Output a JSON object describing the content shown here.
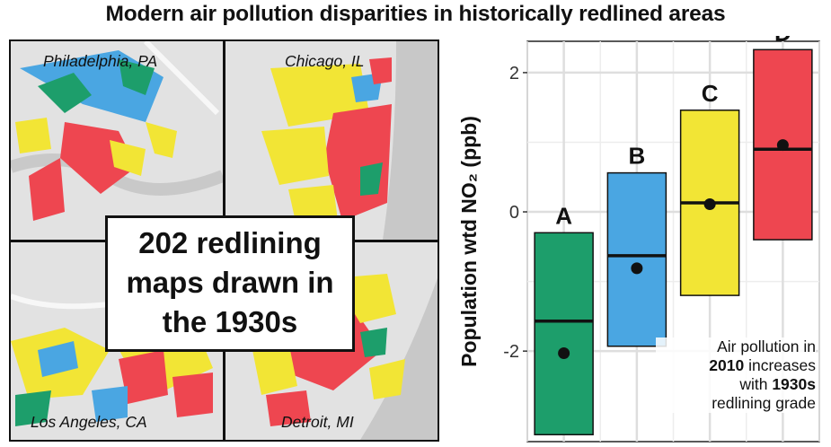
{
  "title": "Modern air pollution disparities in historically redlined areas",
  "maps": {
    "cities": [
      "Philadelphia, PA",
      "Chicago, IL",
      "Los Angeles, CA",
      "Detroit, MI"
    ],
    "callout_lines": [
      "202 redlining",
      "maps drawn in",
      "the 1930s"
    ]
  },
  "colors": {
    "A": "#1d9e6b",
    "B": "#4aa6e2",
    "C": "#f2e535",
    "D": "#ee4650",
    "background": "#ebebeb",
    "road": "#f7f7f7",
    "water": "#c8c8c8"
  },
  "chart_data": {
    "type": "boxplot",
    "ylabel": "Population wtd NO₂ (ppb)",
    "yticks": [
      -2,
      0,
      2
    ],
    "ylim": [
      -3.3,
      2.45
    ],
    "categories": [
      "A",
      "B",
      "C",
      "D"
    ],
    "boxes": [
      {
        "grade": "A",
        "lower": -3.2,
        "upper": -0.3,
        "median": -1.57,
        "mean": -2.03
      },
      {
        "grade": "B",
        "lower": -1.93,
        "upper": 0.56,
        "median": -0.63,
        "mean": -0.81
      },
      {
        "grade": "C",
        "lower": -1.2,
        "upper": 1.46,
        "median": 0.13,
        "mean": 0.11
      },
      {
        "grade": "D",
        "lower": -0.4,
        "upper": 2.33,
        "median": 0.9,
        "mean": 0.96
      }
    ],
    "grid": true,
    "note": {
      "line1": "Air pollution in",
      "line2_bold": "2010",
      "line2_rest": " increases",
      "line3_pre": "with ",
      "line3_bold": "1930s",
      "line4": "redlining grade"
    }
  }
}
